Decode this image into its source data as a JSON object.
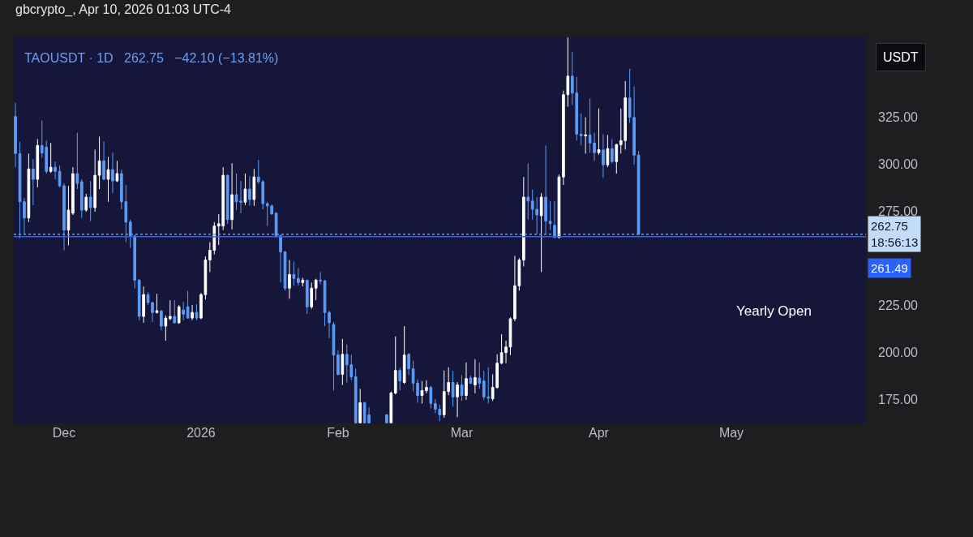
{
  "chart_data": {
    "type": "candlestick",
    "title": "gbcrypto_, Apr 10, 2026 01:03 UTC-4",
    "subtitle": "TAOUSDT · 1D   262.75   −42.10 (−13.81%)",
    "ylabel": "USDT",
    "annotations": [
      "Yearly Open"
    ],
    "x": [
      "2025-11-20",
      "2025-11-21",
      "2025-11-22",
      "2025-11-23",
      "2025-11-24",
      "2025-11-25",
      "2025-11-26",
      "2025-11-27",
      "2025-11-28",
      "2025-11-29",
      "2025-11-30",
      "2025-12-01",
      "2025-12-02",
      "2025-12-03",
      "2025-12-04",
      "2025-12-05",
      "2025-12-06",
      "2025-12-07",
      "2025-12-08",
      "2025-12-09",
      "2025-12-10",
      "2025-12-11",
      "2025-12-12",
      "2025-12-13",
      "2025-12-14",
      "2025-12-15",
      "2025-12-16",
      "2025-12-17",
      "2025-12-18",
      "2025-12-19",
      "2025-12-20",
      "2025-12-21",
      "2025-12-22",
      "2025-12-23",
      "2025-12-24",
      "2025-12-25",
      "2025-12-26",
      "2025-12-27",
      "2025-12-28",
      "2025-12-29",
      "2025-12-30",
      "2025-12-31",
      "2026-01-01",
      "2026-01-02",
      "2026-01-03",
      "2026-01-04",
      "2026-01-05",
      "2026-01-06",
      "2026-01-07",
      "2026-01-08",
      "2026-01-09",
      "2026-01-10",
      "2026-01-11",
      "2026-01-12",
      "2026-01-13",
      "2026-01-14",
      "2026-01-15",
      "2026-01-16",
      "2026-01-17",
      "2026-01-18",
      "2026-01-19",
      "2026-01-20",
      "2026-01-21",
      "2026-01-22",
      "2026-01-23",
      "2026-01-24",
      "2026-01-25",
      "2026-01-26",
      "2026-01-27",
      "2026-01-28",
      "2026-01-29",
      "2026-01-30",
      "2026-01-31",
      "2026-02-01",
      "2026-02-02",
      "2026-02-03",
      "2026-02-04",
      "2026-02-05",
      "2026-02-06",
      "2026-02-07",
      "2026-02-08",
      "2026-02-12",
      "2026-02-13",
      "2026-02-14",
      "2026-02-15",
      "2026-02-16",
      "2026-02-17",
      "2026-02-18",
      "2026-02-19",
      "2026-02-20",
      "2026-02-21",
      "2026-02-22",
      "2026-02-23",
      "2026-02-24",
      "2026-02-25",
      "2026-02-26",
      "2026-02-27",
      "2026-02-28",
      "2026-03-01",
      "2026-03-02",
      "2026-03-03",
      "2026-03-04",
      "2026-03-05",
      "2026-03-06",
      "2026-03-07",
      "2026-03-08",
      "2026-03-09",
      "2026-03-10",
      "2026-03-11",
      "2026-03-12",
      "2026-03-13",
      "2026-03-14",
      "2026-03-15",
      "2026-03-16",
      "2026-03-17",
      "2026-03-18",
      "2026-03-19",
      "2026-03-20",
      "2026-03-21",
      "2026-03-22",
      "2026-03-23",
      "2026-03-24",
      "2026-03-25",
      "2026-03-26",
      "2026-03-27",
      "2026-03-28",
      "2026-03-29",
      "2026-03-30",
      "2026-03-31",
      "2026-04-01",
      "2026-04-02",
      "2026-04-03",
      "2026-04-04",
      "2026-04-05",
      "2026-04-06",
      "2026-04-07",
      "2026-04-08",
      "2026-04-09",
      "2026-04-10"
    ],
    "ohlc": [
      [
        325.4,
        332.7,
        298.4,
        305.7
      ],
      [
        305.7,
        312.0,
        260.6,
        280.0
      ],
      [
        280.0,
        282.0,
        263.2,
        271.4
      ],
      [
        271.4,
        305.7,
        269.2,
        297.5
      ],
      [
        297.5,
        302.7,
        278.2,
        292.0
      ],
      [
        292.0,
        313.4,
        287.7,
        310.0
      ],
      [
        310.0,
        323.3,
        303.5,
        306.0
      ],
      [
        309.1,
        312.6,
        295.0,
        296.2
      ],
      [
        296.2,
        311.3,
        295.4,
        298.4
      ],
      [
        298.4,
        301.4,
        292.0,
        296.2
      ],
      [
        296.2,
        299.2,
        287.7,
        288.5
      ],
      [
        288.5,
        289.8,
        254.2,
        264.9
      ],
      [
        264.9,
        288.5,
        256.8,
        275.6
      ],
      [
        273.9,
        298.4,
        273.0,
        295.0
      ],
      [
        295.0,
        316.8,
        286.8,
        289.8
      ],
      [
        290.7,
        292.0,
        271.4,
        275.6
      ],
      [
        275.6,
        284.2,
        274.7,
        282.5
      ],
      [
        282.5,
        291.1,
        269.7,
        276.9
      ],
      [
        276.9,
        307.8,
        274.7,
        294.1
      ],
      [
        294.1,
        314.7,
        286.8,
        301.8
      ],
      [
        301.8,
        312.1,
        291.5,
        292.0
      ],
      [
        292.0,
        303.9,
        280.0,
        297.1
      ],
      [
        297.1,
        306.1,
        284.7,
        291.1
      ],
      [
        291.1,
        301.8,
        290.5,
        295.0
      ],
      [
        295.0,
        297.1,
        276.0,
        280.0
      ],
      [
        280.0,
        289.0,
        258.5,
        269.2
      ],
      [
        269.2,
        270.5,
        255.5,
        261.9
      ],
      [
        261.9,
        262.3,
        234.0,
        238.3
      ],
      [
        238.3,
        238.8,
        216.8,
        219.0
      ],
      [
        219.0,
        234.9,
        215.6,
        230.6
      ],
      [
        230.6,
        231.9,
        225.0,
        226.3
      ],
      [
        226.3,
        226.8,
        216.0,
        221.1
      ],
      [
        221.1,
        231.0,
        220.5,
        222.0
      ],
      [
        221.8,
        222.5,
        211.7,
        213.8
      ],
      [
        213.8,
        219.5,
        206.1,
        218.1
      ],
      [
        217.7,
        227.6,
        217.0,
        219.0
      ],
      [
        219.0,
        227.6,
        215.2,
        215.6
      ],
      [
        215.6,
        225.0,
        215.0,
        224.1
      ],
      [
        222.4,
        226.7,
        217.0,
        220.2
      ],
      [
        224.1,
        232.7,
        217.7,
        218.1
      ],
      [
        218.1,
        225.0,
        217.0,
        221.1
      ],
      [
        221.1,
        225.4,
        217.0,
        218.1
      ],
      [
        218.1,
        231.5,
        217.5,
        230.6
      ],
      [
        230.6,
        251.0,
        228.0,
        249.0
      ],
      [
        249.0,
        258.5,
        242.6,
        254.2
      ],
      [
        254.2,
        269.2,
        252.0,
        267.1
      ],
      [
        267.1,
        273.5,
        257.0,
        268.3
      ],
      [
        267.1,
        298.4,
        264.9,
        294.1
      ],
      [
        294.1,
        294.5,
        268.3,
        270.5
      ],
      [
        270.5,
        300.5,
        265.3,
        283.8
      ],
      [
        283.8,
        295.0,
        275.6,
        280.0
      ],
      [
        280.4,
        291.1,
        273.9,
        279.8
      ],
      [
        279.8,
        295.0,
        278.2,
        286.8
      ],
      [
        286.8,
        293.7,
        278.0,
        281.2
      ],
      [
        281.2,
        297.5,
        277.8,
        293.2
      ],
      [
        293.2,
        302.3,
        289.5,
        290.7
      ],
      [
        290.7,
        291.5,
        276.0,
        279.0
      ],
      [
        279.0,
        280.0,
        267.1,
        277.8
      ],
      [
        277.8,
        278.5,
        273.0,
        273.5
      ],
      [
        273.9,
        274.5,
        261.0,
        261.9
      ],
      [
        261.9,
        262.5,
        237.0,
        253.3
      ],
      [
        253.3,
        253.8,
        232.7,
        234.0
      ],
      [
        234.0,
        249.0,
        228.4,
        241.3
      ],
      [
        241.3,
        248.2,
        235.3,
        239.2
      ],
      [
        239.2,
        244.7,
        235.3,
        237.0
      ],
      [
        237.0,
        239.5,
        235.0,
        238.3
      ],
      [
        238.3,
        238.5,
        220.2,
        224.1
      ],
      [
        224.1,
        237.0,
        223.0,
        234.0
      ],
      [
        234.0,
        239.0,
        227.6,
        238.3
      ],
      [
        238.3,
        242.6,
        236.0,
        237.9
      ],
      [
        237.9,
        238.5,
        213.8,
        221.1
      ],
      [
        221.1,
        222.0,
        207.4,
        215.6
      ],
      [
        214.7,
        216.0,
        179.5,
        198.4
      ],
      [
        198.4,
        201.0,
        187.5,
        188.1
      ],
      [
        188.1,
        207.0,
        182.5,
        198.8
      ],
      [
        198.8,
        204.0,
        183.8,
        193.2
      ],
      [
        193.2,
        198.5,
        185.0,
        186.8
      ],
      [
        186.8,
        191.1,
        162.3,
        162.3
      ],
      [
        162.3,
        180.4,
        162.3,
        173.0
      ],
      [
        173.0,
        173.5,
        162.3,
        162.3
      ],
      [
        166.6,
        170.5,
        162.3,
        162.3
      ],
      [
        166.6,
        167.0,
        162.3,
        162.3
      ],
      [
        162.3,
        179.0,
        162.3,
        178.2
      ],
      [
        178.2,
        208.3,
        177.5,
        190.2
      ],
      [
        190.2,
        191.5,
        179.5,
        184.6
      ],
      [
        183.8,
        213.8,
        183.0,
        198.4
      ],
      [
        198.8,
        199.5,
        187.7,
        191.1
      ],
      [
        191.1,
        195.4,
        179.0,
        183.4
      ],
      [
        183.4,
        185.5,
        173.0,
        176.9
      ],
      [
        176.9,
        184.6,
        172.6,
        179.5
      ],
      [
        179.5,
        185.0,
        178.0,
        181.2
      ],
      [
        181.2,
        182.0,
        170.0,
        172.6
      ],
      [
        172.6,
        175.0,
        167.5,
        169.6
      ],
      [
        169.6,
        172.0,
        163.2,
        166.6
      ],
      [
        166.6,
        190.2,
        165.0,
        179.0
      ],
      [
        179.0,
        191.9,
        177.0,
        183.8
      ],
      [
        183.8,
        190.0,
        170.9,
        176.1
      ],
      [
        176.1,
        184.0,
        165.3,
        182.5
      ],
      [
        182.5,
        187.7,
        174.0,
        176.9
      ],
      [
        176.9,
        194.5,
        174.5,
        185.9
      ],
      [
        186.2,
        187.5,
        183.0,
        183.4
      ],
      [
        182.5,
        196.2,
        178.0,
        186.4
      ],
      [
        186.2,
        194.5,
        180.5,
        183.4
      ],
      [
        184.6,
        190.0,
        174.5,
        176.1
      ],
      [
        176.1,
        191.9,
        172.6,
        175.5
      ],
      [
        175.2,
        188.1,
        174.0,
        181.2
      ],
      [
        181.2,
        198.8,
        180.5,
        194.1
      ],
      [
        194.1,
        209.5,
        193.5,
        199.7
      ],
      [
        199.7,
        206.1,
        194.1,
        202.7
      ],
      [
        202.7,
        218.5,
        198.4,
        217.7
      ],
      [
        217.7,
        251.2,
        216.5,
        235.3
      ],
      [
        235.3,
        250.0,
        232.7,
        249.0
      ],
      [
        249.0,
        293.2,
        245.6,
        282.5
      ],
      [
        282.5,
        300.5,
        270.5,
        280.4
      ],
      [
        280.4,
        286.4,
        270.5,
        276.0
      ],
      [
        276.0,
        282.5,
        262.8,
        273.0
      ],
      [
        272.6,
        284.6,
        242.6,
        282.5
      ],
      [
        282.5,
        310.0,
        262.8,
        269.7
      ],
      [
        269.7,
        280.4,
        265.0,
        268.3
      ],
      [
        267.5,
        280.4,
        260.6,
        261.0
      ],
      [
        261.0,
        294.5,
        260.5,
        293.2
      ],
      [
        293.2,
        339.2,
        289.0,
        337.0
      ],
      [
        337.0,
        367.5,
        330.6,
        346.9
      ],
      [
        346.9,
        359.8,
        331.4,
        337.9
      ],
      [
        337.9,
        346.5,
        312.6,
        316.0
      ],
      [
        316.0,
        327.1,
        310.0,
        315.1
      ],
      [
        315.1,
        325.0,
        305.7,
        315.6
      ],
      [
        315.6,
        334.9,
        306.1,
        311.3
      ],
      [
        311.3,
        316.8,
        301.8,
        306.1
      ],
      [
        306.1,
        329.7,
        305.0,
        307.8
      ],
      [
        307.6,
        316.0,
        292.8,
        299.7
      ],
      [
        299.7,
        315.6,
        298.4,
        308.3
      ],
      [
        308.3,
        313.4,
        300.5,
        301.4
      ],
      [
        301.4,
        311.0,
        295.0,
        310.4
      ],
      [
        310.4,
        329.7,
        305.7,
        312.6
      ],
      [
        312.6,
        344.3,
        307.8,
        335.3
      ],
      [
        335.3,
        350.8,
        322.0,
        325.0
      ],
      [
        324.9,
        341.3,
        299.7,
        304.85
      ],
      [
        304.85,
        307.0,
        262.2,
        262.75
      ]
    ],
    "colors": [
      "#5b9cf6",
      "#5b9cf6",
      "#5b9cf6",
      "#ffffff",
      "#5b9cf6",
      "#ffffff",
      "#5b9cf6",
      "#5b9cf6",
      "#ffffff",
      "#5b9cf6",
      "#5b9cf6",
      "#5b9cf6",
      "#ffffff",
      "#ffffff",
      "#5b9cf6",
      "#5b9cf6",
      "#ffffff",
      "#5b9cf6",
      "#ffffff",
      "#ffffff",
      "#5b9cf6",
      "#ffffff",
      "#5b9cf6",
      "#ffffff",
      "#5b9cf6",
      "#5b9cf6",
      "#5b9cf6",
      "#5b9cf6",
      "#5b9cf6",
      "#ffffff",
      "#5b9cf6",
      "#5b9cf6",
      "#ffffff",
      "#5b9cf6",
      "#ffffff",
      "#ffffff",
      "#5b9cf6",
      "#ffffff",
      "#5b9cf6",
      "#5b9cf6",
      "#ffffff",
      "#5b9cf6",
      "#ffffff",
      "#ffffff",
      "#ffffff",
      "#ffffff",
      "#ffffff",
      "#ffffff",
      "#5b9cf6",
      "#ffffff",
      "#5b9cf6",
      "#5b9cf6",
      "#ffffff",
      "#5b9cf6",
      "#ffffff",
      "#5b9cf6",
      "#5b9cf6",
      "#5b9cf6",
      "#5b9cf6",
      "#5b9cf6",
      "#5b9cf6",
      "#5b9cf6",
      "#ffffff",
      "#5b9cf6",
      "#5b9cf6",
      "#ffffff",
      "#5b9cf6",
      "#ffffff",
      "#ffffff",
      "#5b9cf6",
      "#5b9cf6",
      "#5b9cf6",
      "#5b9cf6",
      "#5b9cf6",
      "#ffffff",
      "#5b9cf6",
      "#5b9cf6",
      "#5b9cf6",
      "#ffffff",
      "#5b9cf6",
      "#5b9cf6",
      "#5b9cf6",
      "#ffffff",
      "#ffffff",
      "#5b9cf6",
      "#ffffff",
      "#5b9cf6",
      "#5b9cf6",
      "#5b9cf6",
      "#ffffff",
      "#ffffff",
      "#5b9cf6",
      "#5b9cf6",
      "#5b9cf6",
      "#ffffff",
      "#ffffff",
      "#5b9cf6",
      "#ffffff",
      "#5b9cf6",
      "#ffffff",
      "#5b9cf6",
      "#ffffff",
      "#5b9cf6",
      "#5b9cf6",
      "#5b9cf6",
      "#ffffff",
      "#ffffff",
      "#ffffff",
      "#ffffff",
      "#ffffff",
      "#ffffff",
      "#ffffff",
      "#ffffff",
      "#5b9cf6",
      "#5b9cf6",
      "#5b9cf6",
      "#ffffff",
      "#5b9cf6",
      "#5b9cf6",
      "#5b9cf6",
      "#ffffff",
      "#ffffff",
      "#ffffff",
      "#5b9cf6",
      "#5b9cf6",
      "#5b9cf6",
      "#ffffff",
      "#5b9cf6",
      "#5b9cf6",
      "#ffffff",
      "#5b9cf6",
      "#ffffff",
      "#5b9cf6",
      "#ffffff",
      "#ffffff",
      "#ffffff",
      "#5b9cf6",
      "#5b9cf6",
      "#5b9cf6"
    ],
    "xlim": [
      "2025-11-19T15:00",
      "2026-05-31T11:00"
    ],
    "xticks": [
      {
        "value": "2025-12-01",
        "label": "Dec"
      },
      {
        "value": "2026-01-01",
        "label": "2026"
      },
      {
        "value": "2026-02-01",
        "label": "Feb"
      },
      {
        "value": "2026-03-01",
        "label": "Mar"
      },
      {
        "value": "2026-04-01",
        "label": "Apr"
      },
      {
        "value": "2026-05-01",
        "label": "May"
      }
    ],
    "ylim": [
      162.0,
      368.0
    ],
    "yticks": [
      {
        "value": 175,
        "label": "175.00"
      },
      {
        "value": 200,
        "label": "200.00"
      },
      {
        "value": 225,
        "label": "225.00"
      },
      {
        "value": 275,
        "label": "275.00"
      },
      {
        "value": 300,
        "label": "300.00"
      },
      {
        "value": 325,
        "label": "325.00"
      }
    ],
    "ref_lines": [
      {
        "axis": "y",
        "value": 262.75,
        "label": "262.75\n18:56:13",
        "color": "#5b9cf6",
        "line_style": "dotted"
      },
      {
        "axis": "y",
        "value": 261.49,
        "label": "261.49",
        "color": "#2962ff",
        "line_style": "solid"
      }
    ]
  }
}
